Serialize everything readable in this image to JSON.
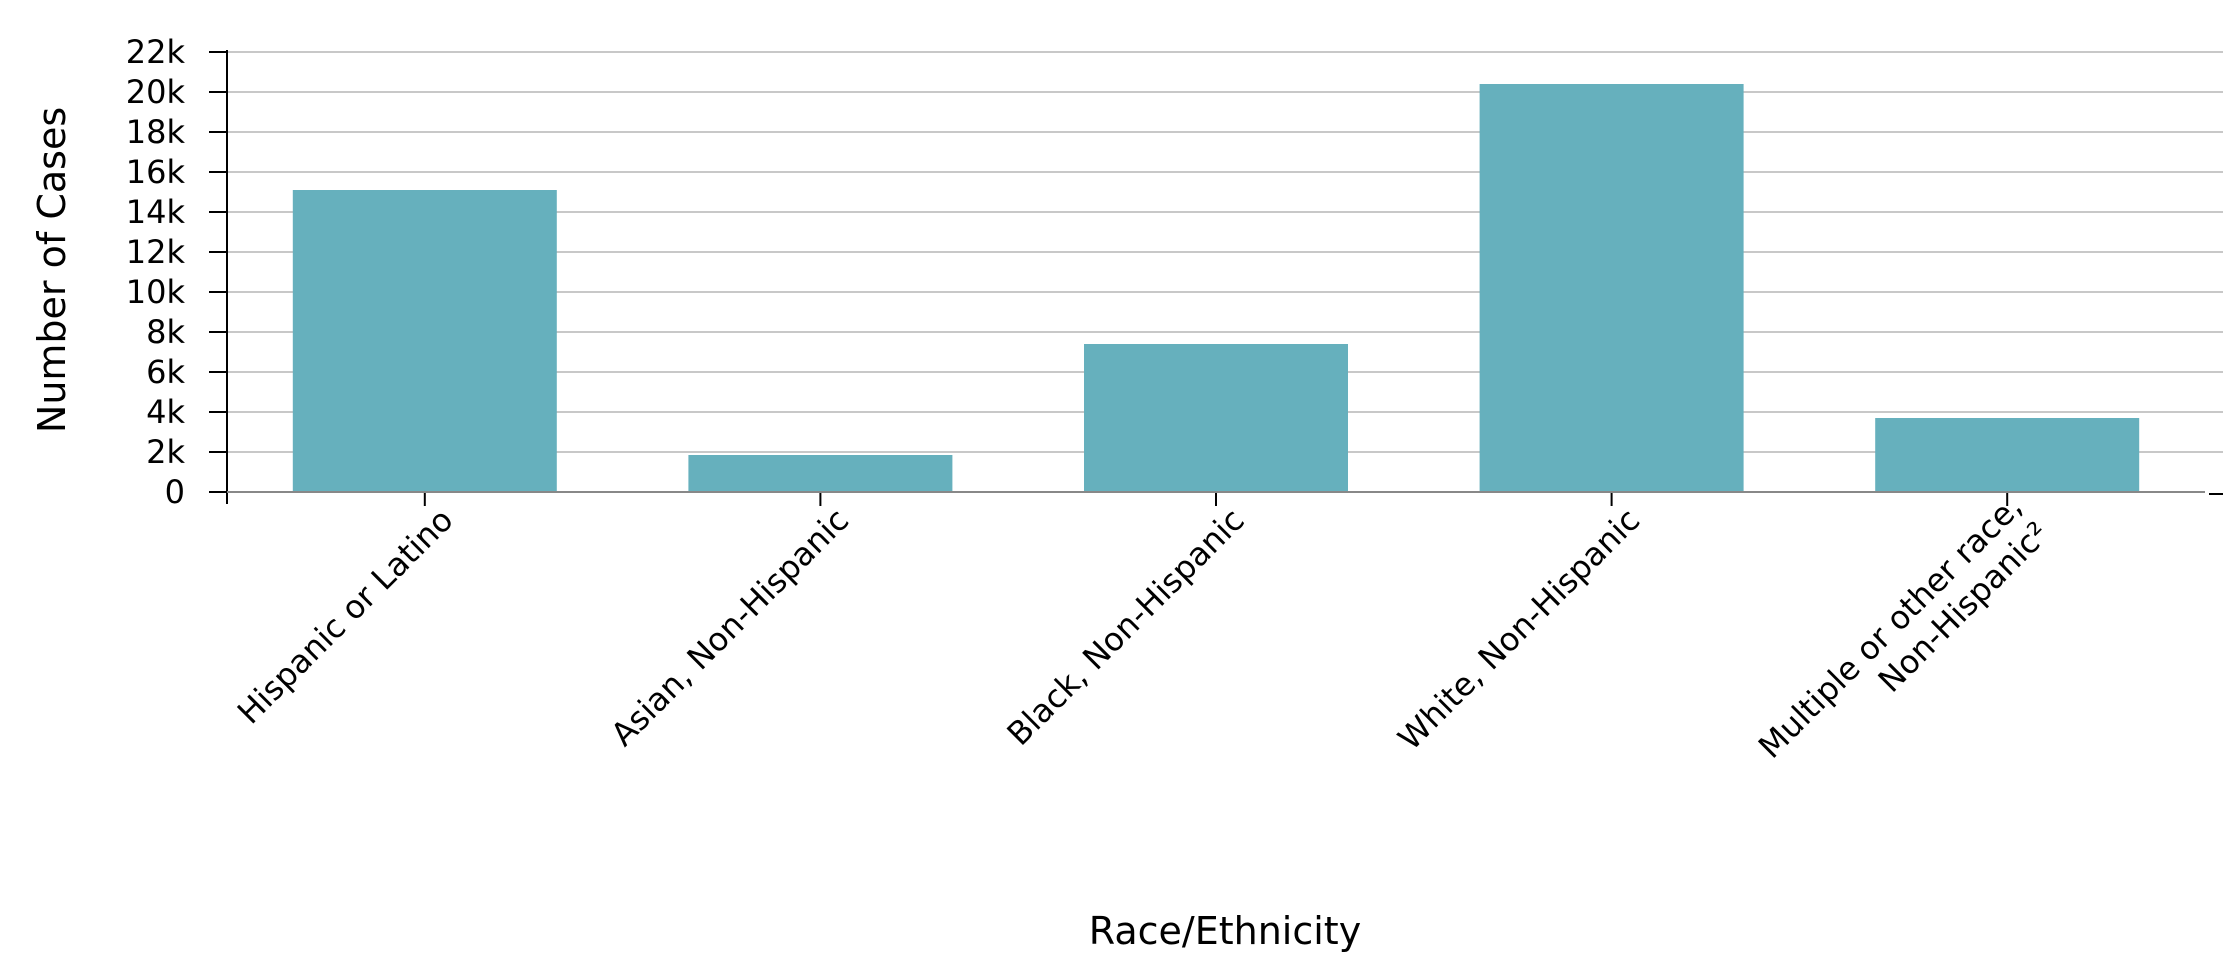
{
  "chart_data": {
    "type": "bar",
    "title": "",
    "xlabel": "Race/Ethnicity",
    "ylabel": "Number of Cases",
    "categories": [
      [
        "Hispanic or Latino"
      ],
      [
        "Asian, Non-Hispanic"
      ],
      [
        "Black, Non-Hispanic"
      ],
      [
        "White, Non-Hispanic"
      ],
      [
        "Multiple or other race,",
        "Non-Hispanic²"
      ]
    ],
    "values": [
      15100,
      1850,
      7400,
      20400,
      3700
    ],
    "ylim": [
      0,
      22000
    ],
    "yticks": [
      0,
      2000,
      4000,
      6000,
      8000,
      10000,
      12000,
      14000,
      16000,
      18000,
      20000,
      22000
    ],
    "ytick_labels": [
      "0",
      "2k",
      "4k",
      "6k",
      "8k",
      "10k",
      "12k",
      "14k",
      "16k",
      "18k",
      "20k",
      "22k"
    ],
    "grid": true,
    "legend": "none",
    "bar_color": "#66b0bd",
    "grid_color": "#c8c8c8",
    "axis_color": "#000000"
  }
}
